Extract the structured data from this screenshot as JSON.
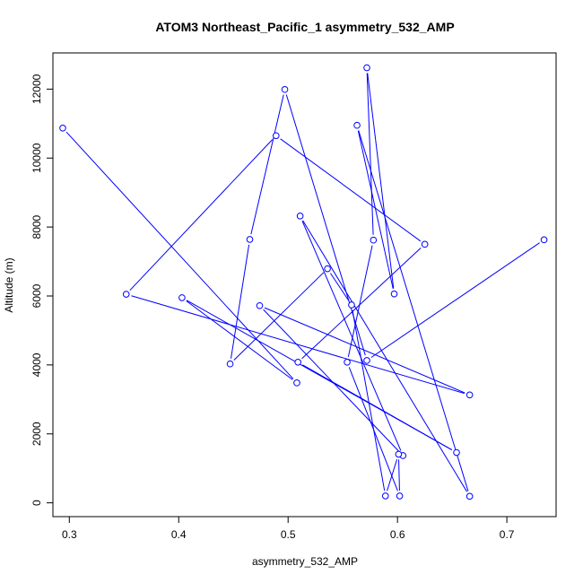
{
  "chart_data": {
    "type": "line",
    "title": "ATOM3 Northeast_Pacific_1 asymmetry_532_AMP",
    "xlabel": "asymmetry_532_AMP",
    "ylabel": "Altitude (m)",
    "xlim": [
      0.285,
      0.745
    ],
    "ylim": [
      -400,
      13050
    ],
    "xticks": [
      0.3,
      0.4,
      0.5,
      0.6,
      0.7
    ],
    "xtick_labels": [
      "0.3",
      "0.4",
      "0.5",
      "0.6",
      "0.7"
    ],
    "yticks": [
      0,
      2000,
      4000,
      6000,
      8000,
      10000,
      12000
    ],
    "ytick_labels": [
      "0",
      "2000",
      "4000",
      "6000",
      "8000",
      "10000",
      "12000"
    ],
    "grid": false,
    "marker": "open-circle",
    "color": "#0000ff",
    "points": [
      {
        "x": 0.294,
        "y": 10870
      },
      {
        "x": 0.508,
        "y": 3480
      },
      {
        "x": 0.403,
        "y": 5950
      },
      {
        "x": 0.654,
        "y": 1460
      },
      {
        "x": 0.509,
        "y": 4080
      },
      {
        "x": 0.625,
        "y": 7500
      },
      {
        "x": 0.489,
        "y": 10650
      },
      {
        "x": 0.352,
        "y": 6050
      },
      {
        "x": 0.666,
        "y": 3130
      },
      {
        "x": 0.474,
        "y": 5720
      },
      {
        "x": 0.605,
        "y": 1370
      },
      {
        "x": 0.511,
        "y": 8320
      },
      {
        "x": 0.666,
        "y": 190
      },
      {
        "x": 0.563,
        "y": 10950
      },
      {
        "x": 0.597,
        "y": 6060
      },
      {
        "x": 0.572,
        "y": 12620
      },
      {
        "x": 0.578,
        "y": 7620
      },
      {
        "x": 0.554,
        "y": 4080
      },
      {
        "x": 0.602,
        "y": 200
      },
      {
        "x": 0.601,
        "y": 1410
      },
      {
        "x": 0.589,
        "y": 200
      },
      {
        "x": 0.558,
        "y": 5740
      },
      {
        "x": 0.536,
        "y": 6790
      },
      {
        "x": 0.447,
        "y": 4030
      },
      {
        "x": 0.465,
        "y": 7640
      },
      {
        "x": 0.497,
        "y": 11990
      },
      {
        "x": 0.572,
        "y": 4130
      },
      {
        "x": 0.734,
        "y": 7630
      }
    ]
  }
}
